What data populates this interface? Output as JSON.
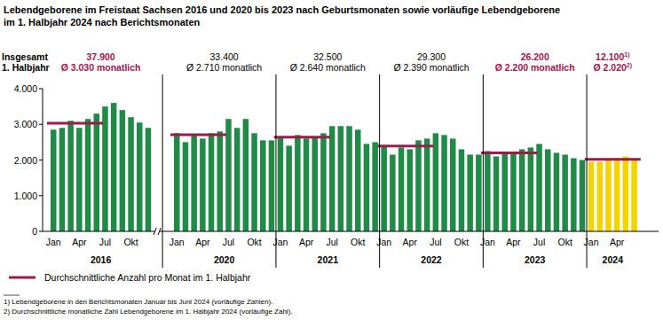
{
  "chart_data": {
    "type": "bar",
    "title": [
      "Lebendgeborene im Freistaat Sachsen 2016 und 2020 bis 2023 nach Geburtsmonaten sowie vorläufige Lebendgeborene",
      "im 1. Halbjahr 2024 nach Berichtsmonaten"
    ],
    "summary_heading": [
      "Insgesamt",
      "1. Halbjahr"
    ],
    "ylim": [
      0,
      4000
    ],
    "yticks": [
      0,
      {
        "value": 1000,
        "label": "1.000"
      },
      {
        "value": 2000,
        "label": "2.000"
      },
      {
        "value": 3000,
        "label": "3.000"
      },
      {
        "value": 4000,
        "label": "4.000"
      }
    ],
    "average_line": {
      "name": "Durchschnittliche Anzahl pro Monat im 1. Halbjahr",
      "color": "#9e1a4c"
    },
    "footnotes": [
      "1) Lebendgeborene in den Berichtsmonaten Januar bis Juni 2024 (vorläufige Zahlen).",
      "2) Durchschnittliche monatliche Zahl Lebendgeborene im 1. Halbjahr 2024 (vorläufige Zahl)."
    ],
    "groups": [
      {
        "label": "2016",
        "total": "37.900",
        "average_label": "Ø 3.030 monatlich",
        "average": 3030,
        "label_color": "#a3154f",
        "color": "#1f8b47",
        "categories": [
          "Jan",
          null,
          null,
          "Apr",
          null,
          null,
          "Jul",
          null,
          null,
          "Okt",
          null,
          null
        ],
        "values": [
          2850,
          2900,
          3100,
          2900,
          3150,
          3300,
          3500,
          3600,
          3400,
          3200,
          3050,
          2900
        ]
      },
      {
        "label": "2020",
        "total": "33.400",
        "average_label": "Ø 2.710 monatlich",
        "average": 2710,
        "label_color": "#000000",
        "color": "#1f8b47",
        "categories": [
          "Jan",
          null,
          null,
          "Apr",
          null,
          null,
          "Jul",
          null,
          null,
          "Okt",
          null,
          null
        ],
        "values": [
          2750,
          2500,
          2700,
          2600,
          2750,
          2800,
          3150,
          2900,
          3150,
          2750,
          2550,
          2550
        ]
      },
      {
        "label": "2021",
        "total": "32.500",
        "average_label": "Ø 2.640 monatlich",
        "average": 2640,
        "label_color": "#000000",
        "color": "#1f8b47",
        "categories": [
          "Jan",
          null,
          null,
          "Apr",
          null,
          null,
          "Jul",
          null,
          null,
          "Okt",
          null,
          null
        ],
        "values": [
          2650,
          2400,
          2700,
          2600,
          2650,
          2750,
          2950,
          2950,
          2950,
          2850,
          2450,
          2500
        ]
      },
      {
        "label": "2022",
        "total": "29.300",
        "average_label": "Ø 2.390 monatlich",
        "average": 2390,
        "label_color": "#000000",
        "color": "#1f8b47",
        "categories": [
          "Jan",
          null,
          null,
          "Apr",
          null,
          null,
          "Jul",
          null,
          null,
          "Okt",
          null,
          null
        ],
        "values": [
          2400,
          2150,
          2350,
          2300,
          2550,
          2600,
          2750,
          2700,
          2600,
          2300,
          2150,
          2150
        ]
      },
      {
        "label": "2023",
        "total": "26.200",
        "average_label": "Ø 2.200 monatlich",
        "average": 2200,
        "label_color": "#a3154f",
        "color": "#1f8b47",
        "categories": [
          "Jan",
          null,
          null,
          "Apr",
          null,
          null,
          "Jul",
          null,
          null,
          "Okt",
          null,
          null
        ],
        "values": [
          2250,
          2100,
          2200,
          2200,
          2300,
          2350,
          2450,
          2300,
          2200,
          2150,
          2050,
          2000
        ]
      },
      {
        "label": "2024",
        "total": "12.100",
        "total_note": "1)",
        "average_label": "Ø 2.020",
        "average_note": "2)",
        "average": 2020,
        "label_color": "#a3154f",
        "color": "#f2d400",
        "categories": [
          "Jan",
          null,
          null,
          "Apr",
          null,
          null
        ],
        "values": [
          1950,
          1950,
          2050,
          2050,
          2100,
          2050
        ]
      }
    ]
  }
}
